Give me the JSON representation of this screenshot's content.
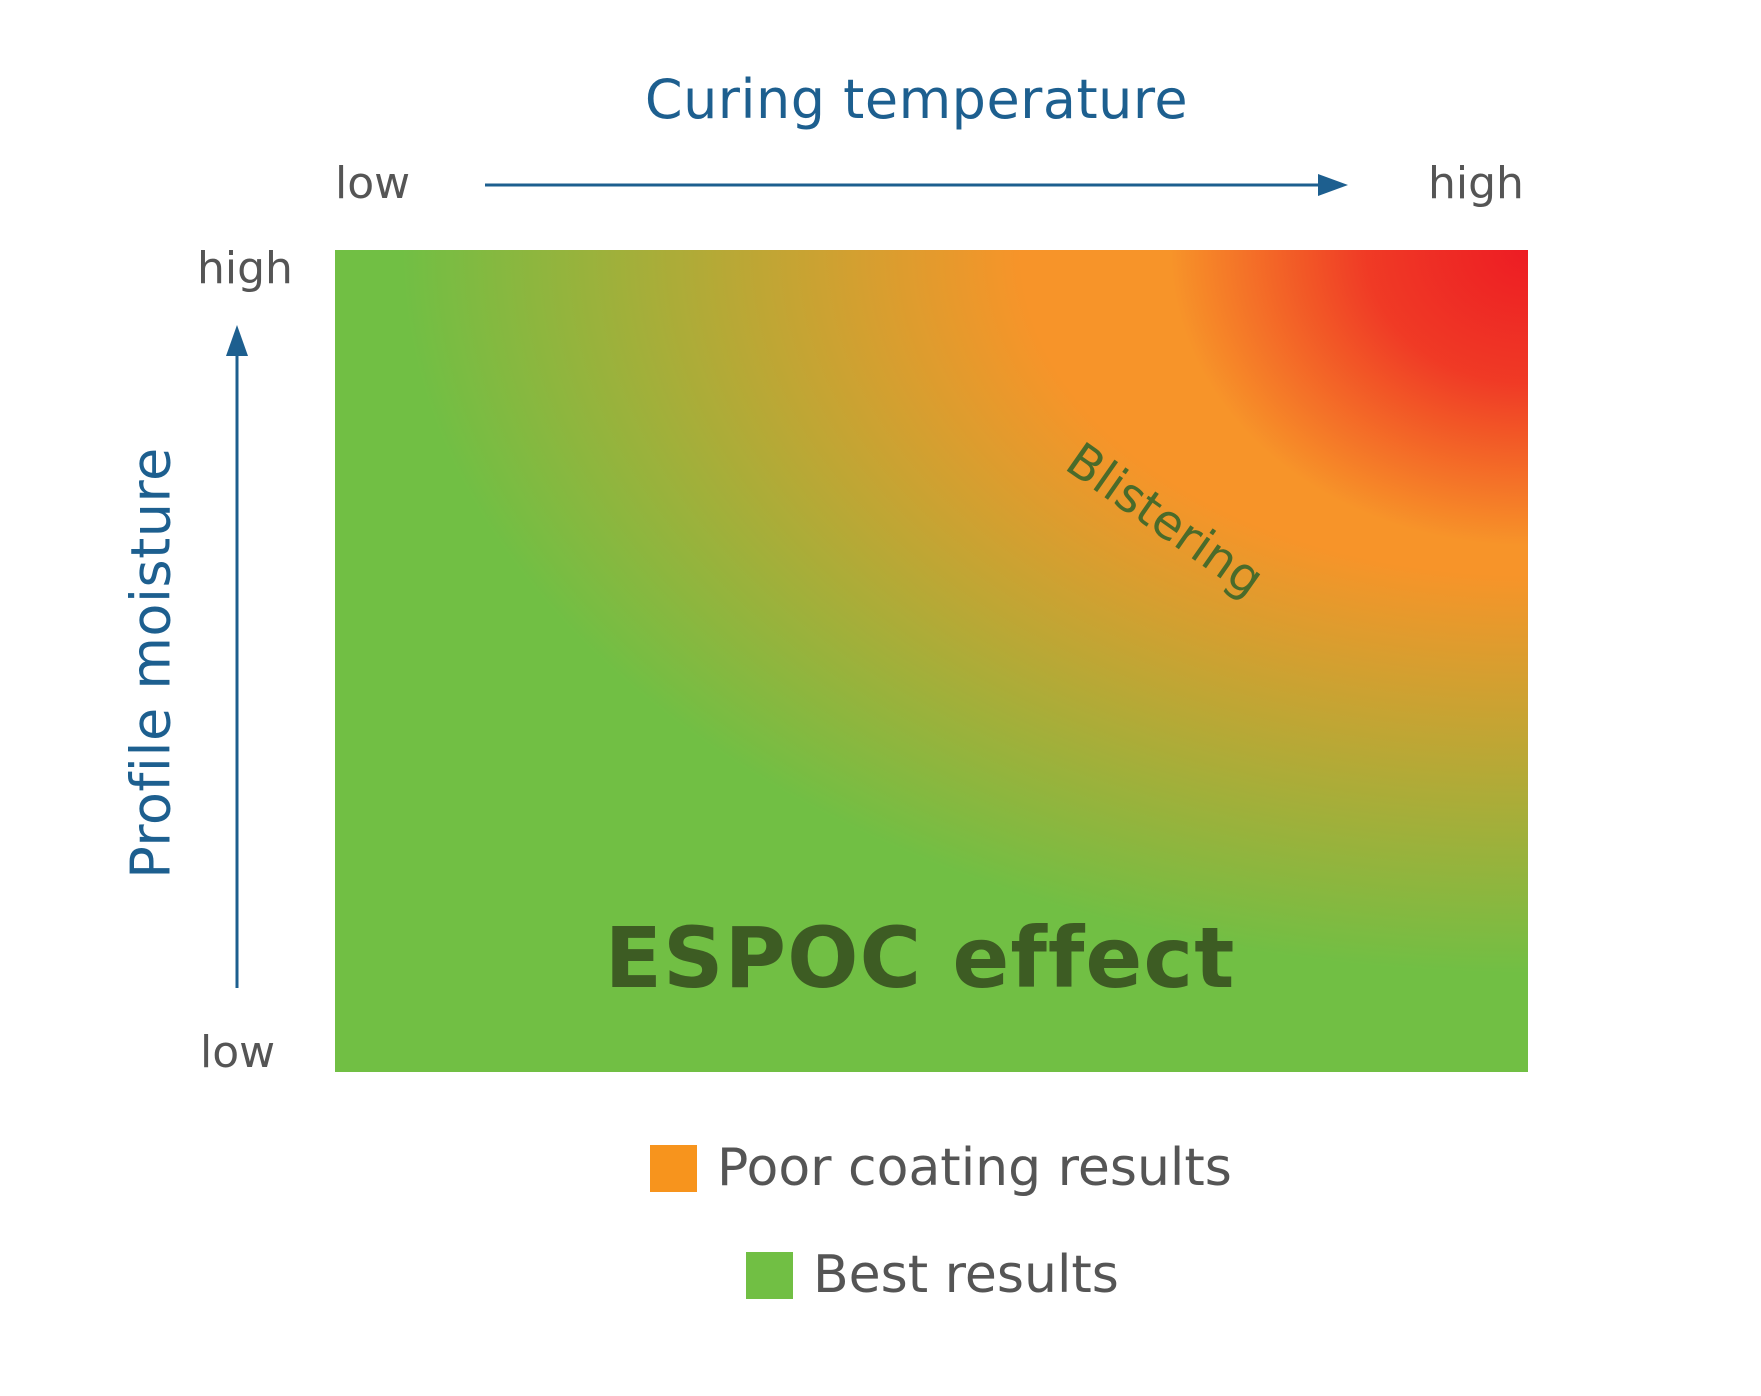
{
  "x_axis": {
    "title": "Curing temperature",
    "low_label": "low",
    "high_label": "high"
  },
  "y_axis": {
    "title": "Profile moisture",
    "low_label": "low",
    "high_label": "high"
  },
  "plot": {
    "region_label": "Blistering",
    "main_label": "ESPOC effect"
  },
  "legend": [
    {
      "label": "Poor coating results",
      "color": "#f7941d"
    },
    {
      "label": "Best results",
      "color": "#71bf44"
    }
  ],
  "colors": {
    "axis_blue": "#1d5f8f",
    "best": "#71bf44",
    "poor": "#f7941d",
    "worst": "#ed1c24"
  }
}
